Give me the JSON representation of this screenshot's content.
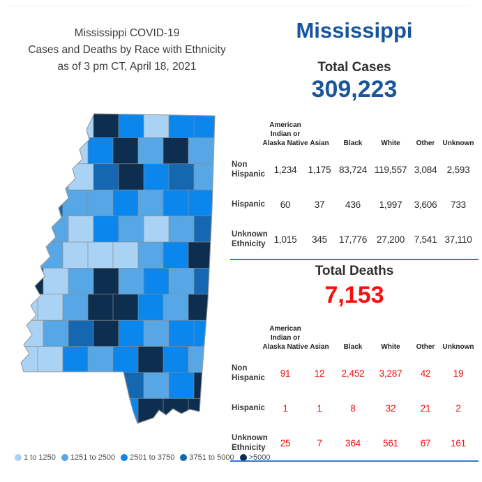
{
  "header": {
    "title_line1": "Mississippi COVID-19",
    "title_line2": "Cases and Deaths by Race with Ethnicity",
    "title_line3": "as of 3 pm CT, April 18, 2021"
  },
  "state_title": "Mississippi",
  "table_columns": [
    "American\nIndian or\nAlaska Native",
    "Asian",
    "Black",
    "White",
    "Other",
    "Unknown"
  ],
  "row_labels": [
    "Non Hispanic",
    "Hispanic",
    "Unknown Ethnicity"
  ],
  "cases": {
    "label": "Total Cases",
    "value": "309,223",
    "rows": [
      [
        "1,234",
        "1,175",
        "83,724",
        "119,557",
        "3,084",
        "2,593"
      ],
      [
        "60",
        "37",
        "436",
        "1,997",
        "3,606",
        "733"
      ],
      [
        "1,015",
        "345",
        "17,776",
        "27,200",
        "7,541",
        "37,110"
      ]
    ]
  },
  "deaths": {
    "label": "Total Deaths",
    "value": "7,153",
    "rows": [
      [
        "91",
        "12",
        "2,452",
        "3,287",
        "42",
        "19"
      ],
      [
        "1",
        "1",
        "8",
        "32",
        "21",
        "2"
      ],
      [
        "25",
        "7",
        "364",
        "561",
        "67",
        "161"
      ]
    ]
  },
  "legend": {
    "items": [
      {
        "label": "1 to 1250",
        "color": "#A9D2F4"
      },
      {
        "label": "1251 to 2500",
        "color": "#57A7E6"
      },
      {
        "label": "2501 to 3750",
        "color": "#0A86ED"
      },
      {
        "label": "3751 to 5000",
        "color": "#1667B1"
      },
      {
        "label": ">5000",
        "color": "#0D2E4F"
      }
    ]
  },
  "colors": {
    "accent_blue": "#17549E",
    "value_blue": "#1A569B",
    "deaths_red": "#FB0D0D",
    "divider_blue": "#2E7CD6"
  },
  "map": {
    "palette": [
      "#A9D2F4",
      "#57A7E6",
      "#0A86ED",
      "#1667B1",
      "#0D2E4F"
    ],
    "grid": [
      [
        0,
        0,
        0,
        4,
        2,
        0,
        2,
        2
      ],
      [
        0,
        0,
        0,
        2,
        4,
        1,
        4,
        1
      ],
      [
        1,
        1,
        0,
        3,
        4,
        2,
        3,
        1
      ],
      [
        3,
        3,
        1,
        1,
        2,
        1,
        2,
        2
      ],
      [
        1,
        1,
        0,
        2,
        1,
        0,
        1,
        3
      ],
      [
        4,
        1,
        0,
        0,
        0,
        1,
        2,
        4
      ],
      [
        4,
        0,
        1,
        4,
        1,
        2,
        1,
        3
      ],
      [
        0,
        0,
        1,
        4,
        4,
        2,
        1,
        4
      ],
      [
        0,
        1,
        3,
        4,
        2,
        1,
        2,
        2
      ],
      [
        0,
        0,
        2,
        1,
        2,
        4,
        2,
        1
      ],
      [
        0,
        0,
        1,
        1,
        3,
        1,
        2,
        4
      ],
      [
        0,
        0,
        1,
        2,
        2,
        4,
        4,
        4
      ]
    ]
  },
  "chart_data": [
    {
      "type": "table",
      "title": "Total Cases",
      "total": 309223,
      "columns": [
        "American Indian or Alaska Native",
        "Asian",
        "Black",
        "White",
        "Other",
        "Unknown"
      ],
      "rows": [
        {
          "label": "Non Hispanic",
          "values": [
            1234,
            1175,
            83724,
            119557,
            3084,
            2593
          ]
        },
        {
          "label": "Hispanic",
          "values": [
            60,
            37,
            436,
            1997,
            3606,
            733
          ]
        },
        {
          "label": "Unknown Ethnicity",
          "values": [
            1015,
            345,
            17776,
            27200,
            7541,
            37110
          ]
        }
      ]
    },
    {
      "type": "table",
      "title": "Total Deaths",
      "total": 7153,
      "columns": [
        "American Indian or Alaska Native",
        "Asian",
        "Black",
        "White",
        "Other",
        "Unknown"
      ],
      "rows": [
        {
          "label": "Non Hispanic",
          "values": [
            91,
            12,
            2452,
            3287,
            42,
            19
          ]
        },
        {
          "label": "Hispanic",
          "values": [
            1,
            1,
            8,
            32,
            21,
            2
          ]
        },
        {
          "label": "Unknown Ethnicity",
          "values": [
            25,
            7,
            364,
            561,
            67,
            161
          ]
        }
      ]
    },
    {
      "type": "heatmap",
      "title": "Mississippi county-level COVID-19 cases choropleth",
      "legend_bins": [
        "1 to 1250",
        "1251 to 2500",
        "2501 to 3750",
        "3751 to 5000",
        ">5000"
      ],
      "bin_colors": [
        "#A9D2F4",
        "#57A7E6",
        "#0A86ED",
        "#1667B1",
        "#0D2E4F"
      ],
      "legend_position": "bottom-left"
    }
  ]
}
